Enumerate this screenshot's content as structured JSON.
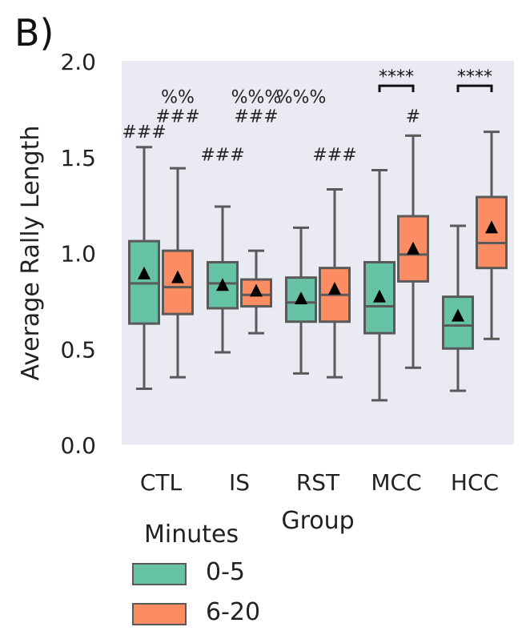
{
  "panel_label": "B)",
  "chart_data": {
    "type": "box",
    "title": "",
    "xlabel": "Group",
    "ylabel": "Average Rally Length",
    "ylim": [
      0.0,
      2.0
    ],
    "yticks": [
      "0.0",
      "0.5",
      "1.0",
      "1.5",
      "2.0"
    ],
    "categories": [
      "CTL",
      "IS",
      "RST",
      "MCC",
      "HCC"
    ],
    "grid": false,
    "legend": {
      "title": "Minutes",
      "placement": "bottom-left"
    },
    "series": [
      {
        "name": "0-5",
        "color": "#66c2a5",
        "boxes": [
          {
            "min": 0.29,
            "q1": 0.63,
            "median": 0.84,
            "q3": 1.06,
            "max": 1.55,
            "mean": 0.89
          },
          {
            "min": 0.48,
            "q1": 0.71,
            "median": 0.84,
            "q3": 0.95,
            "max": 1.24,
            "mean": 0.83
          },
          {
            "min": 0.37,
            "q1": 0.64,
            "median": 0.74,
            "q3": 0.87,
            "max": 1.13,
            "mean": 0.76
          },
          {
            "min": 0.23,
            "q1": 0.58,
            "median": 0.72,
            "q3": 0.95,
            "max": 1.43,
            "mean": 0.77
          },
          {
            "min": 0.28,
            "q1": 0.5,
            "median": 0.62,
            "q3": 0.77,
            "max": 1.14,
            "mean": 0.67
          }
        ]
      },
      {
        "name": "6-20",
        "color": "#fc8d62",
        "boxes": [
          {
            "min": 0.35,
            "q1": 0.68,
            "median": 0.82,
            "q3": 1.01,
            "max": 1.44,
            "mean": 0.87
          },
          {
            "min": 0.58,
            "q1": 0.72,
            "median": 0.78,
            "q3": 0.86,
            "max": 1.01,
            "mean": 0.8
          },
          {
            "min": 0.35,
            "q1": 0.64,
            "median": 0.78,
            "q3": 0.92,
            "max": 1.33,
            "mean": 0.81
          },
          {
            "min": 0.4,
            "q1": 0.85,
            "median": 0.99,
            "q3": 1.19,
            "max": 1.61,
            "mean": 1.02
          },
          {
            "min": 0.55,
            "q1": 0.92,
            "median": 1.05,
            "q3": 1.29,
            "max": 1.63,
            "mean": 1.13
          }
        ]
      }
    ],
    "annotations": [
      {
        "text": "###",
        "category": 0,
        "series": 0,
        "y": 1.6
      },
      {
        "text": "###",
        "category": 0,
        "series": 1,
        "y": 1.68
      },
      {
        "text": "%%",
        "category": 0,
        "series": 1,
        "y": 1.78
      },
      {
        "text": "###",
        "category": 1,
        "series": 0,
        "y": 1.48
      },
      {
        "text": "###",
        "category": 1,
        "series": 1,
        "y": 1.68
      },
      {
        "text": "%%%",
        "category": 1,
        "series": 1,
        "y": 1.78
      },
      {
        "text": "###",
        "category": 2,
        "series": 1,
        "y": 1.48
      },
      {
        "text": "%%%",
        "category": 2,
        "series": 0,
        "y": 1.78
      },
      {
        "text": "#",
        "category": 3,
        "series": 1,
        "y": 1.68
      }
    ],
    "brackets": [
      {
        "category": 3,
        "y": 1.87,
        "text": "****"
      },
      {
        "category": 4,
        "y": 1.87,
        "text": "****"
      }
    ]
  }
}
